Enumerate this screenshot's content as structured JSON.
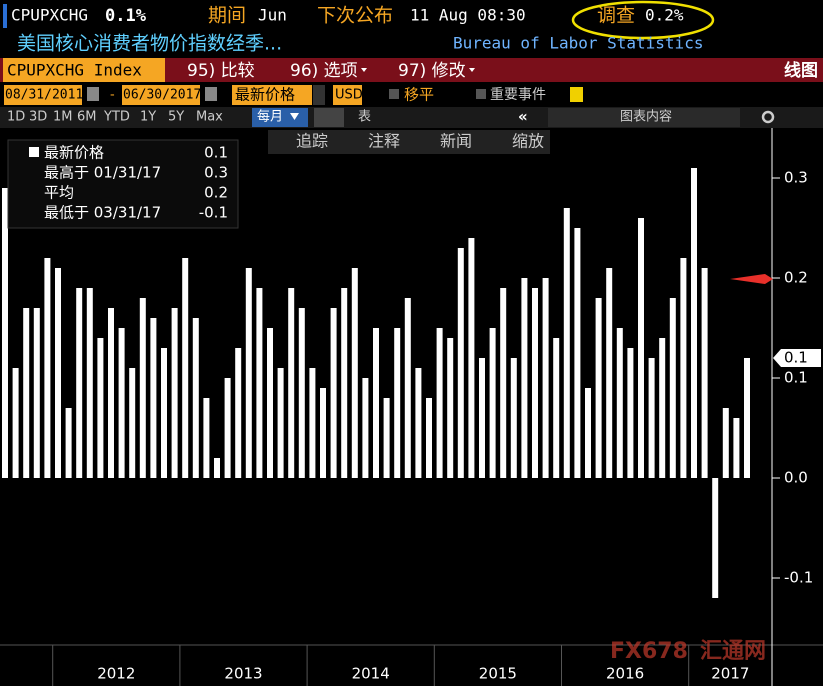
{
  "header": {
    "ticker": "CPUPXCHG",
    "last": "0.1%",
    "period_label": "期间",
    "period": "Jun",
    "next_release_label": "下次公布",
    "next_release": "11 Aug 08:30",
    "survey_label": "调查",
    "survey": "0.2%",
    "description": "美国核心消费者物价指数经季...",
    "source": "Bureau of Labor Statistics"
  },
  "toolbar": {
    "security": "CPUPXCHG Index",
    "compare": "95) 比较",
    "options": "96) 选项",
    "modify": "97) 修改",
    "chart_type": "线图"
  },
  "controls": {
    "start_date": "08/31/2011",
    "end_date": "06/30/2017",
    "field": "最新价格",
    "currency": "USD",
    "moving_avg": "移平",
    "events": "重要事件"
  },
  "ranges": [
    "1D",
    "3D",
    "1M",
    "6M",
    "YTD",
    "1Y",
    "5Y",
    "Max"
  ],
  "frequency": "每月",
  "tabs": {
    "table": "表",
    "chart_content": "图表内容"
  },
  "chart_tools": [
    "追踪",
    "注释",
    "新闻",
    "缩放"
  ],
  "legend": [
    {
      "name": "最新价格",
      "value": 0.1
    },
    {
      "name": "最高于 01/31/17",
      "value": 0.3
    },
    {
      "name": "平均",
      "value": 0.2
    },
    {
      "name": "最低于 03/31/17",
      "value": -0.1
    }
  ],
  "last_label": 0.1,
  "watermark": [
    "FX678",
    "汇通网"
  ],
  "chart_data": {
    "type": "bar",
    "color": "#ffffff",
    "values": [
      0.29,
      0.11,
      0.17,
      0.17,
      0.22,
      0.21,
      0.07,
      0.19,
      0.19,
      0.14,
      0.17,
      0.15,
      0.11,
      0.18,
      0.16,
      0.13,
      0.17,
      0.22,
      0.16,
      0.08,
      0.02,
      0.1,
      0.13,
      0.21,
      0.19,
      0.15,
      0.11,
      0.19,
      0.17,
      0.11,
      0.09,
      0.17,
      0.19,
      0.21,
      0.1,
      0.15,
      0.08,
      0.15,
      0.18,
      0.11,
      0.08,
      0.15,
      0.14,
      0.23,
      0.24,
      0.12,
      0.15,
      0.19,
      0.12,
      0.2,
      0.19,
      0.2,
      0.14,
      0.27,
      0.25,
      0.09,
      0.18,
      0.21,
      0.15,
      0.13,
      0.26,
      0.12,
      0.14,
      0.18,
      0.22,
      0.31,
      0.21,
      -0.12,
      0.07,
      0.06,
      0.12
    ],
    "years": [
      "2012",
      "2013",
      "2014",
      "2015",
      "2016",
      "2017"
    ],
    "ylim": [
      -0.167,
      0.35
    ],
    "yticks": [
      -0.1,
      {
        "value": 0,
        "label": "0.0"
      },
      0.1,
      0.2,
      0.3
    ]
  }
}
